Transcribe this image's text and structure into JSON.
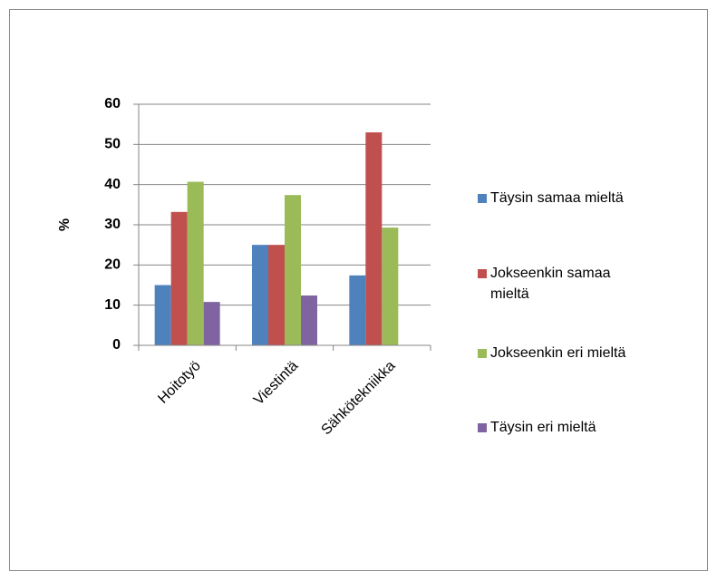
{
  "chart_data": {
    "type": "bar",
    "ylabel": "%",
    "categories": [
      "Hoitotyö",
      "Viestintä",
      "Sähkötekniikka"
    ],
    "series": [
      {
        "name": "Täysin samaa mieltä",
        "color": "#4f81bd",
        "values": [
          15,
          25,
          17.4
        ]
      },
      {
        "name": "Jokseenkin samaa mieltä",
        "color": "#c0504d",
        "values": [
          33.2,
          25,
          53
        ]
      },
      {
        "name": "Jokseenkin eri mieltä",
        "color": "#9bbb59",
        "values": [
          40.7,
          37.4,
          29.3
        ]
      },
      {
        "name": "Täysin eri mieltä",
        "color": "#8064a2",
        "values": [
          10.8,
          12.4,
          0
        ]
      }
    ],
    "ylim": [
      0,
      60
    ],
    "yticks": [
      0,
      10,
      20,
      30,
      40,
      50,
      60
    ],
    "grid": true,
    "legend": "right"
  }
}
